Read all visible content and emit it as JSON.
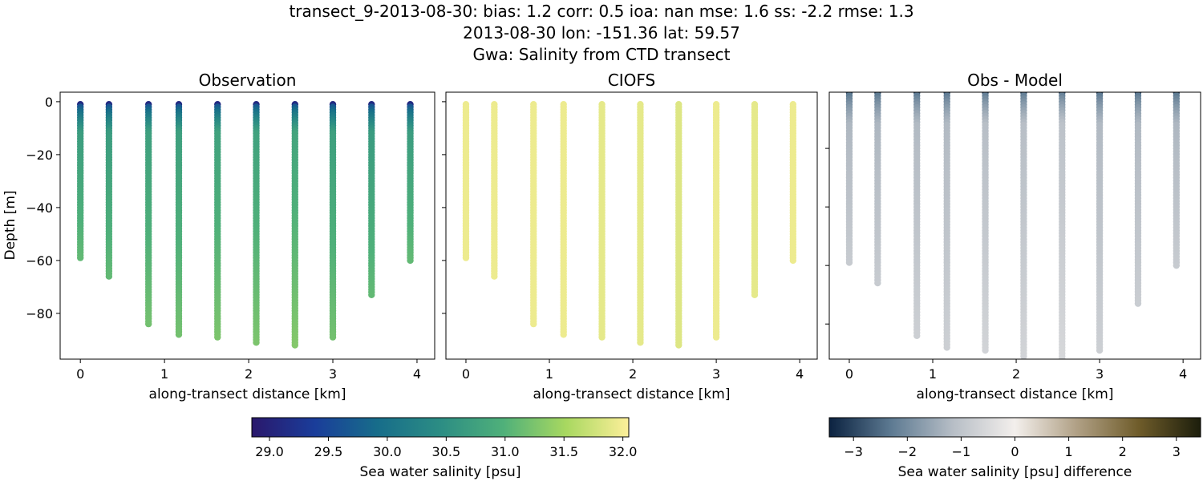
{
  "title_lines": [
    "transect_9-2013-08-30: bias: 1.2  corr: 0.5  ioa: nan  mse: 1.6  ss: -2.2  rmse: 1.3",
    "2013-08-30 lon: -151.36 lat: 59.57",
    "Gwa: Salinity from CTD transect"
  ],
  "chart_data": [
    {
      "type": "scatter",
      "title": "Observation",
      "xlabel": "along-transect distance [km]",
      "ylabel": "Depth [m]",
      "xlim": [
        -0.24,
        4.21
      ],
      "ylim": [
        -97.3,
        3.6
      ],
      "xticks": [
        "0",
        "1",
        "2",
        "3",
        "4"
      ],
      "yticks": [
        "0",
        "−20",
        "−40",
        "−60",
        "−80"
      ],
      "grid": false,
      "stations": [
        {
          "distance_km": 0.0,
          "max_depth_m": -59,
          "obs_surface": 29.0,
          "obs_bottom": 31.1,
          "model": 31.95
        },
        {
          "distance_km": 0.34,
          "max_depth_m": -66,
          "obs_surface": 29.0,
          "obs_bottom": 31.1,
          "model": 31.95
        },
        {
          "distance_km": 0.81,
          "max_depth_m": -84,
          "obs_surface": 29.0,
          "obs_bottom": 31.2,
          "model": 31.95
        },
        {
          "distance_km": 1.17,
          "max_depth_m": -88,
          "obs_surface": 29.0,
          "obs_bottom": 31.2,
          "model": 31.95
        },
        {
          "distance_km": 1.63,
          "max_depth_m": -89,
          "obs_surface": 29.0,
          "obs_bottom": 31.25,
          "model": 31.9
        },
        {
          "distance_km": 2.09,
          "max_depth_m": -91,
          "obs_surface": 29.0,
          "obs_bottom": 31.25,
          "model": 31.9
        },
        {
          "distance_km": 2.55,
          "max_depth_m": -92,
          "obs_surface": 29.0,
          "obs_bottom": 31.3,
          "model": 31.85
        },
        {
          "distance_km": 3.0,
          "max_depth_m": -89,
          "obs_surface": 29.0,
          "obs_bottom": 31.2,
          "model": 31.95
        },
        {
          "distance_km": 3.46,
          "max_depth_m": -73,
          "obs_surface": 29.0,
          "obs_bottom": 31.1,
          "model": 31.9
        },
        {
          "distance_km": 3.92,
          "max_depth_m": -60,
          "obs_surface": 29.0,
          "obs_bottom": 31.1,
          "model": 31.95
        }
      ]
    },
    {
      "type": "scatter",
      "title": "CIOFS",
      "xlabel": "along-transect distance [km]",
      "xlim": [
        -0.24,
        4.21
      ],
      "ylim": [
        -97.3,
        3.6
      ],
      "xticks": [
        "0",
        "1",
        "2",
        "3",
        "4"
      ]
    },
    {
      "type": "scatter",
      "title": "Obs - Model",
      "xlabel": "along-transect distance [km]",
      "xlim": [
        -0.24,
        4.21
      ],
      "ylim": [
        -92,
        -0.8
      ],
      "xticks": [
        "0",
        "1",
        "2",
        "3",
        "4"
      ]
    }
  ],
  "colorbars": [
    {
      "label": "Sea water salinity [psu]",
      "range": [
        28.85,
        32.05
      ],
      "ticks": [
        "29.0",
        "29.5",
        "30.0",
        "30.5",
        "31.0",
        "31.5",
        "32.0"
      ],
      "colors": [
        "#2a186c",
        "#1a3d9a",
        "#176d8a",
        "#2c8d84",
        "#4fb07a",
        "#a8d860",
        "#fdef9a"
      ]
    },
    {
      "label": "Sea water salinity [psu] difference",
      "range": [
        -3.45,
        3.45
      ],
      "ticks": [
        "−3",
        "−2",
        "−1",
        "0",
        "1",
        "2",
        "3"
      ],
      "colors": [
        "#0b2240",
        "#5d7a92",
        "#b7bec6",
        "#f3efec",
        "#b0a085",
        "#6f5c2a",
        "#1c1e0c"
      ]
    }
  ]
}
